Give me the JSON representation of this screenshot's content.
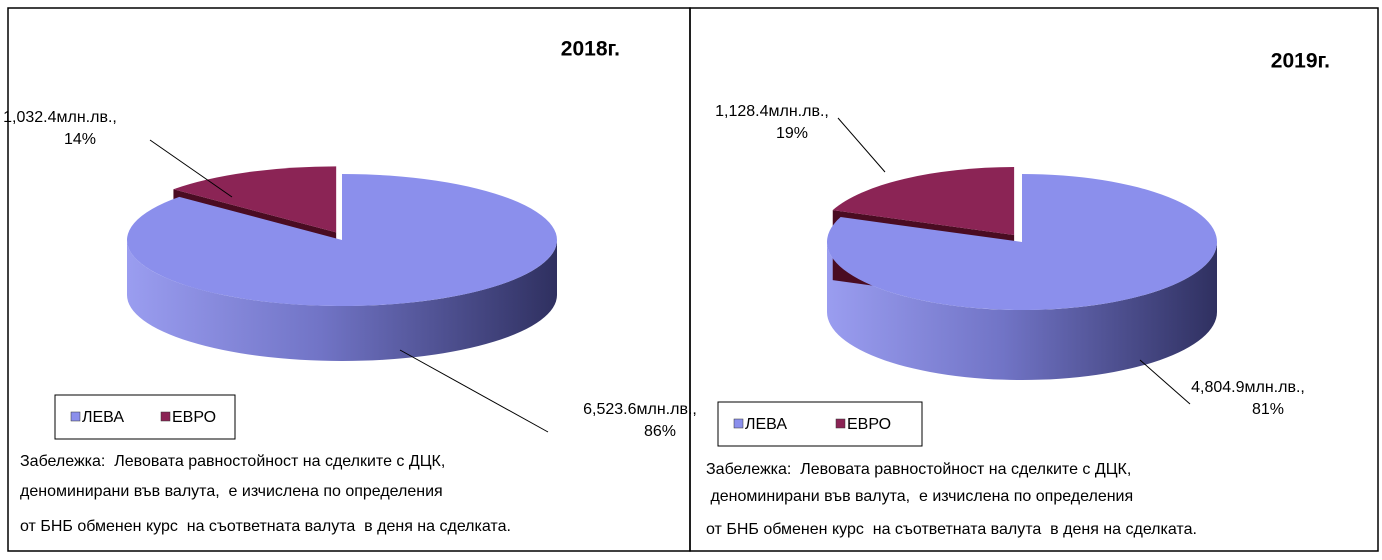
{
  "chart_data": [
    {
      "type": "pie3d",
      "title": "2018г.",
      "categories": [
        "ЛЕВА",
        "ЕВРО"
      ],
      "values": [
        6523.6,
        1032.4
      ],
      "value_labels": [
        "6,523.6млн.лв.,",
        "1,032.4млн.лв.,"
      ],
      "percent_labels": [
        "86%",
        "14%"
      ],
      "colors": [
        "#8b8fec",
        "#8b2455"
      ],
      "exploded": [
        false,
        true
      ],
      "legend": "bottom-left",
      "note": [
        "Забележка:  Левовата равностойност на сделките с ДЦК,",
        "деноминирани във валута,  е изчислена по определения",
        "от БНБ обменен курс  на съответната валута  в деня на сделката."
      ]
    },
    {
      "type": "pie3d",
      "title": "2019г.",
      "categories": [
        "ЛЕВА",
        "ЕВРО"
      ],
      "values": [
        4804.9,
        1128.4
      ],
      "value_labels": [
        "4,804.9млн.лв.,",
        "1,128.4млн.лв.,"
      ],
      "percent_labels": [
        "81%",
        "19%"
      ],
      "colors": [
        "#8b8fec",
        "#8b2455"
      ],
      "exploded": [
        false,
        true
      ],
      "legend": "bottom-left",
      "note": [
        "Забележка:  Левовата равностойност на сделките с ДЦК,",
        " деноминирани във валута,  е изчислена по определения",
        "от БНБ обменен курс  на съответната валута  в деня на сделката."
      ]
    }
  ]
}
